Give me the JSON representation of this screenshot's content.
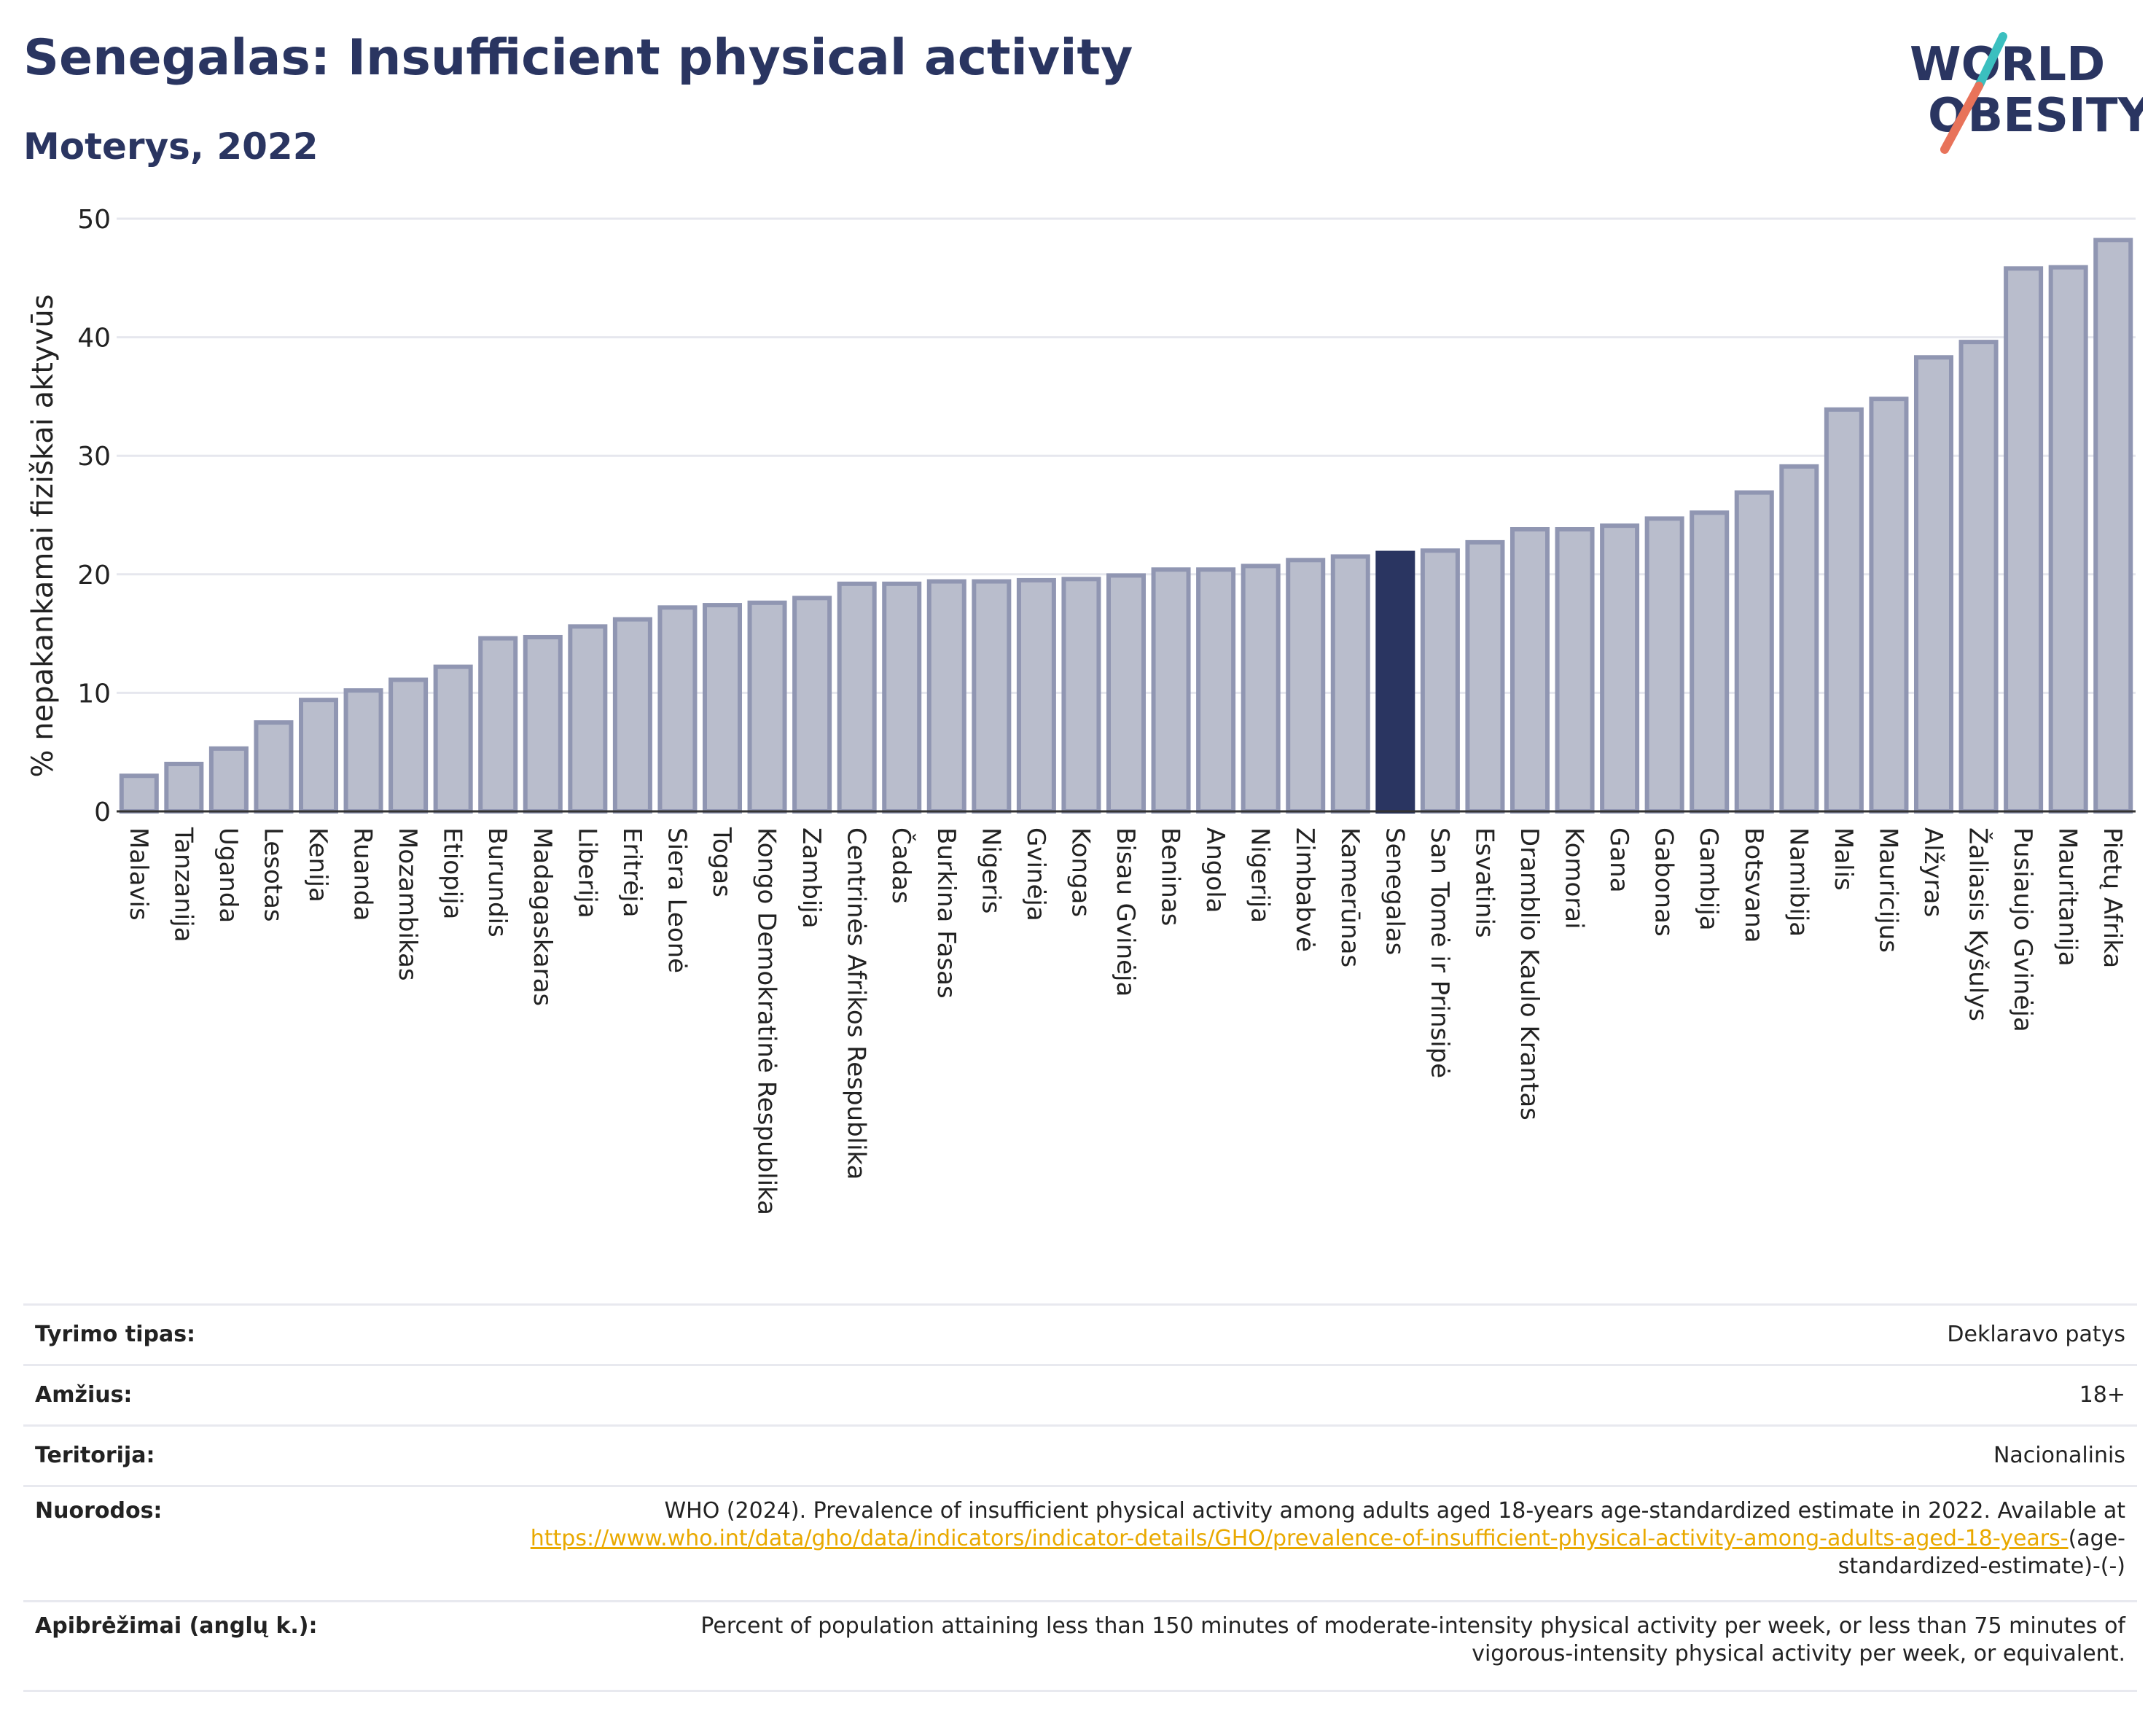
{
  "header": {
    "title": "Senegalas: Insufficient physical activity",
    "subtitle": "Moterys, 2022"
  },
  "logo": {
    "line1": "WORLD",
    "line2": "OBESITY",
    "accent_color": "#3bbfbf",
    "slash_color": "#e8735a"
  },
  "colors": {
    "bar": "#b9bdcc",
    "bar_border": "#9096b2",
    "highlight": "#2a3561",
    "grid": "#e6e7ee"
  },
  "chart_data": {
    "type": "bar",
    "ylabel": "% nepakankamai fiziškai aktyvūs",
    "ylim": [
      0,
      50
    ],
    "yticks": [
      0,
      10,
      20,
      30,
      40,
      50
    ],
    "highlight": "Senegalas",
    "categories": [
      "Malavis",
      "Tanzanija",
      "Uganda",
      "Lesotas",
      "Kenija",
      "Ruanda",
      "Mozambikas",
      "Etiopija",
      "Burundis",
      "Madagaskaras",
      "Liberija",
      "Eritrėja",
      "Siera Leonė",
      "Togas",
      "Kongo Demokratinė Respublika",
      "Zambija",
      "Centrinės Afrikos Respublika",
      "Čadas",
      "Burkina Fasas",
      "Nigeris",
      "Gvinėja",
      "Kongas",
      "Bisau Gvinėja",
      "Beninas",
      "Angola",
      "Nigerija",
      "Zimbabvė",
      "Kamerūnas",
      "Senegalas",
      "San Tomė ir Prinsipė",
      "Esvatinis",
      "Dramblio Kaulo Krantas",
      "Komorai",
      "Gana",
      "Gabonas",
      "Gambija",
      "Botsvana",
      "Namibija",
      "Malis",
      "Mauricijus",
      "Alžyras",
      "Žaliasis Kyšulys",
      "Pusiaujo Gvinėja",
      "Mauritanija",
      "Pietų Afrika"
    ],
    "values": [
      3.0,
      4.0,
      5.3,
      7.5,
      9.4,
      10.2,
      11.1,
      12.2,
      14.6,
      14.7,
      15.6,
      16.2,
      17.2,
      17.4,
      17.6,
      18.0,
      19.2,
      19.2,
      19.4,
      19.4,
      19.5,
      19.6,
      19.9,
      20.4,
      20.4,
      20.7,
      21.2,
      21.5,
      21.8,
      22.0,
      22.7,
      23.8,
      23.8,
      24.1,
      24.7,
      25.2,
      26.9,
      29.1,
      33.9,
      34.8,
      38.3,
      39.6,
      45.8,
      45.9,
      48.2
    ]
  },
  "info": {
    "rows": [
      {
        "label": "Tyrimo tipas:",
        "value": "Deklaravo patys"
      },
      {
        "label": "Amžius:",
        "value": "18+"
      },
      {
        "label": "Teritorija:",
        "value": "Nacionalinis"
      },
      {
        "label": "Nuorodos:",
        "value_prefix": "WHO (2024). Prevalence of insufficient physical activity among adults aged 18-years age-standardized estimate in 2022. Available at ",
        "link": "https://www.who.int/data/gho/data/indicators/indicator-details/GHO/prevalence-of-insufficient-physical-activity-among-adults-aged-18-years-",
        "value_suffix": "(age-standardized-estimate)-(-)"
      },
      {
        "label": "Apibrėžimai (anglų k.):",
        "value": "Percent of population attaining less than 150 minutes of moderate-intensity physical activity per week, or less than 75 minutes of vigorous-intensity physical activity per week, or equivalent."
      }
    ]
  }
}
